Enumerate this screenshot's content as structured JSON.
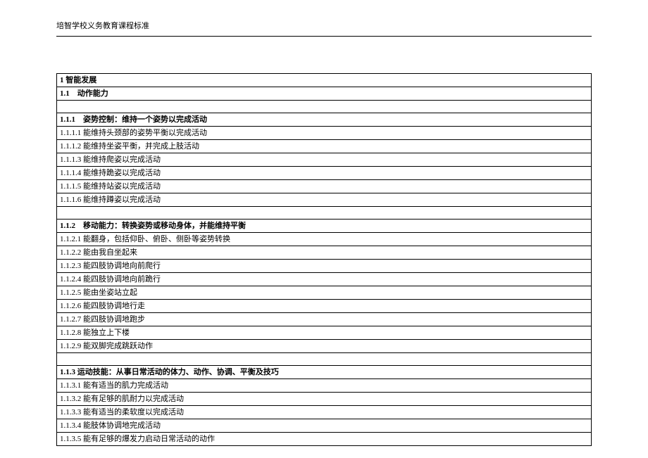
{
  "header": "培智学校义务教育课程标准",
  "rows": [
    {
      "text": "1  智能发展",
      "bold": true
    },
    {
      "text": "1.1　动作能力",
      "bold": true
    },
    {
      "text": "",
      "bold": false
    },
    {
      "text": "1.1.1　姿势控制：维持一个姿势以完成活动",
      "bold": true
    },
    {
      "text": "1.1.1.1 能维持头颈部的姿势平衡以完成活动",
      "bold": false
    },
    {
      "text": "1.1.1.2 能维持坐姿平衡，并完成上肢活动",
      "bold": false
    },
    {
      "text": "1.1.1.3 能维持爬姿以完成活动",
      "bold": false
    },
    {
      "text": "1.1.1.4 能维持跪姿以完成活动",
      "bold": false
    },
    {
      "text": "1.1.1.5 能维持站姿以完成活动",
      "bold": false
    },
    {
      "text": "1.1.1.6 能维持蹲姿以完成活动",
      "bold": false
    },
    {
      "text": "",
      "bold": false
    },
    {
      "text": "1.1.2　移动能力：转换姿势或移动身体，并能维持平衡",
      "bold": true
    },
    {
      "text": "1.1.2.1 能翻身，包括仰卧、俯卧、侧卧等姿势转换",
      "bold": false
    },
    {
      "text": "1.1.2.2 能由我自坐起来",
      "bold": false
    },
    {
      "text": "1.1.2.3 能四肢协调地向前爬行",
      "bold": false
    },
    {
      "text": "1.1.2.4 能四肢协调地向前跪行",
      "bold": false
    },
    {
      "text": "1.1.2.5 能由坐姿站立起",
      "bold": false
    },
    {
      "text": "1.1.2.6 能四肢协调地行走",
      "bold": false
    },
    {
      "text": "1.1.2.7 能四肢协调地跑步",
      "bold": false
    },
    {
      "text": "1.1.2.8 能独立上下楼",
      "bold": false
    },
    {
      "text": "1.1.2.9 能双脚完成跳跃动作",
      "bold": false
    },
    {
      "text": "",
      "bold": false
    },
    {
      "text": "1.1.3  运动技能：从事日常活动的体力、动作、协调、平衡及技巧",
      "bold": true
    },
    {
      "text": "1.1.3.1 能有适当的肌力完成活动",
      "bold": false
    },
    {
      "text": "1.1.3.2 能有足够的肌耐力以完成活动",
      "bold": false
    },
    {
      "text": "1.1.3.3 能有适当的柔软度以完成活动",
      "bold": false
    },
    {
      "text": "1.1.3.4 能肢体协调地完成活动",
      "bold": false
    },
    {
      "text": "1.1.3.5 能有足够的爆发力启动日常活动的动作",
      "bold": false
    }
  ]
}
